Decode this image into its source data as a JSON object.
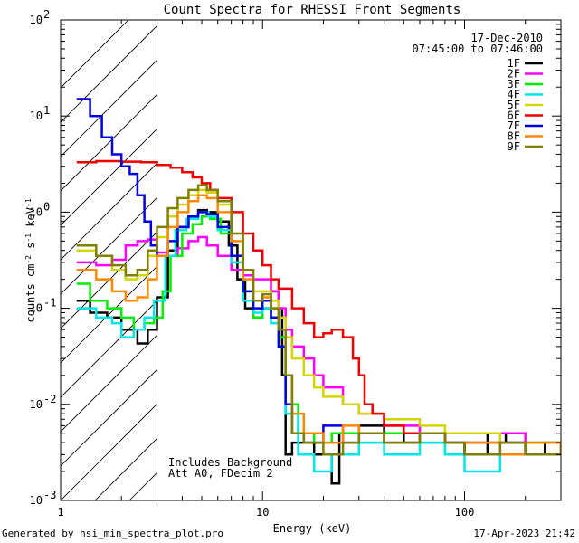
{
  "chart_data": {
    "type": "line",
    "title": "Count Spectra for RHESSI Front Segments",
    "xlabel": "Energy (keV)",
    "ylabel_parts": [
      "counts cm",
      "-2",
      " s",
      "-1",
      " keV",
      "-1"
    ],
    "xscale": "log",
    "yscale": "log",
    "xlim": [
      1,
      300
    ],
    "ylim": [
      0.001,
      100
    ],
    "x_ticks": [
      {
        "v": 1,
        "label": "1"
      },
      {
        "v": 10,
        "label": "10"
      },
      {
        "v": 100,
        "label": "100"
      }
    ],
    "y_ticks": [
      {
        "v": 0.001,
        "base": "10",
        "exp": "-3"
      },
      {
        "v": 0.01,
        "base": "10",
        "exp": "-2"
      },
      {
        "v": 0.1,
        "base": "10",
        "exp": "-1"
      },
      {
        "v": 1,
        "base": "10",
        "exp": "0"
      },
      {
        "v": 10,
        "base": "10",
        "exp": "1"
      },
      {
        "v": 100,
        "base": "10",
        "exp": "2"
      }
    ],
    "excluded_region": [
      1,
      3
    ],
    "date": "17-Dec-2010",
    "time_range": "07:45:00 to 07:46:00",
    "annotations": [
      "Includes Background",
      "Att A0, FDecim 2"
    ],
    "series": [
      {
        "name": "1F",
        "color": "#000000",
        "points": [
          [
            1.2,
            0.12
          ],
          [
            1.4,
            0.09
          ],
          [
            1.7,
            0.08
          ],
          [
            2.0,
            0.06
          ],
          [
            2.4,
            0.043
          ],
          [
            2.7,
            0.06
          ],
          [
            3.0,
            0.13
          ],
          [
            3.4,
            0.4
          ],
          [
            3.8,
            0.7
          ],
          [
            4.3,
            0.9
          ],
          [
            4.8,
            1.05
          ],
          [
            5.3,
            1.0
          ],
          [
            6.0,
            0.8
          ],
          [
            6.8,
            0.45
          ],
          [
            7.5,
            0.2
          ],
          [
            8.2,
            0.1
          ],
          [
            9.0,
            0.08
          ],
          [
            10,
            0.1
          ],
          [
            11,
            0.15
          ],
          [
            12,
            0.1
          ],
          [
            12.5,
            0.02
          ],
          [
            13,
            0.003
          ],
          [
            14,
            0.004
          ],
          [
            16,
            0.004
          ],
          [
            18,
            0.003
          ],
          [
            20,
            0.003
          ],
          [
            22,
            0.0015
          ],
          [
            24,
            0.005
          ],
          [
            30,
            0.006
          ],
          [
            40,
            0.005
          ],
          [
            50,
            0.004
          ],
          [
            60,
            0.005
          ],
          [
            80,
            0.004
          ],
          [
            100,
            0.003
          ],
          [
            130,
            0.005
          ],
          [
            160,
            0.004
          ],
          [
            200,
            0.003
          ],
          [
            250,
            0.004
          ],
          [
            300,
            0.003
          ]
        ]
      },
      {
        "name": "2F",
        "color": "#ff00ff",
        "points": [
          [
            1.2,
            0.3
          ],
          [
            1.5,
            0.28
          ],
          [
            1.8,
            0.32
          ],
          [
            2.1,
            0.45
          ],
          [
            2.4,
            0.5
          ],
          [
            2.7,
            0.52
          ],
          [
            3.0,
            0.38
          ],
          [
            3.4,
            0.35
          ],
          [
            3.8,
            0.42
          ],
          [
            4.3,
            0.5
          ],
          [
            4.8,
            0.55
          ],
          [
            5.3,
            0.45
          ],
          [
            6.0,
            0.35
          ],
          [
            7.0,
            0.25
          ],
          [
            8.0,
            0.22
          ],
          [
            9.0,
            0.2
          ],
          [
            10,
            0.2
          ],
          [
            11,
            0.15
          ],
          [
            12,
            0.1
          ],
          [
            13,
            0.06
          ],
          [
            14,
            0.04
          ],
          [
            16,
            0.03
          ],
          [
            18,
            0.02
          ],
          [
            20,
            0.015
          ],
          [
            25,
            0.01
          ],
          [
            30,
            0.008
          ],
          [
            40,
            0.006
          ],
          [
            60,
            0.005
          ],
          [
            80,
            0.004
          ],
          [
            100,
            0.004
          ],
          [
            150,
            0.005
          ],
          [
            200,
            0.004
          ],
          [
            300,
            0.003
          ]
        ]
      },
      {
        "name": "3F",
        "color": "#00ee00",
        "points": [
          [
            1.2,
            0.18
          ],
          [
            1.4,
            0.12
          ],
          [
            1.7,
            0.1
          ],
          [
            2.0,
            0.08
          ],
          [
            2.3,
            0.06
          ],
          [
            2.6,
            0.07
          ],
          [
            2.9,
            0.08
          ],
          [
            3.2,
            0.15
          ],
          [
            3.5,
            0.35
          ],
          [
            4.0,
            0.6
          ],
          [
            4.5,
            0.75
          ],
          [
            5.0,
            0.9
          ],
          [
            5.5,
            0.85
          ],
          [
            6.2,
            0.6
          ],
          [
            7.0,
            0.3
          ],
          [
            8.0,
            0.15
          ],
          [
            9.0,
            0.08
          ],
          [
            10,
            0.1
          ],
          [
            11,
            0.08
          ],
          [
            12,
            0.05
          ],
          [
            13,
            0.01
          ],
          [
            15,
            0.005
          ],
          [
            18,
            0.004
          ],
          [
            22,
            0.005
          ],
          [
            30,
            0.004
          ],
          [
            40,
            0.005
          ],
          [
            60,
            0.004
          ],
          [
            80,
            0.003
          ],
          [
            100,
            0.004
          ],
          [
            150,
            0.003
          ],
          [
            200,
            0.004
          ],
          [
            300,
            0.003
          ]
        ]
      },
      {
        "name": "4F",
        "color": "#00e5e5",
        "points": [
          [
            1.2,
            0.1
          ],
          [
            1.5,
            0.08
          ],
          [
            1.8,
            0.07
          ],
          [
            2.0,
            0.05
          ],
          [
            2.3,
            0.06
          ],
          [
            2.6,
            0.08
          ],
          [
            2.9,
            0.12
          ],
          [
            3.3,
            0.35
          ],
          [
            3.7,
            0.65
          ],
          [
            4.2,
            0.85
          ],
          [
            4.8,
            1.0
          ],
          [
            5.4,
            0.9
          ],
          [
            6.0,
            0.65
          ],
          [
            7.0,
            0.3
          ],
          [
            8.0,
            0.12
          ],
          [
            9.0,
            0.09
          ],
          [
            10,
            0.1
          ],
          [
            11,
            0.07
          ],
          [
            12,
            0.04
          ],
          [
            13,
            0.008
          ],
          [
            15,
            0.003
          ],
          [
            18,
            0.002
          ],
          [
            22,
            0.003
          ],
          [
            30,
            0.004
          ],
          [
            40,
            0.003
          ],
          [
            60,
            0.004
          ],
          [
            80,
            0.003
          ],
          [
            100,
            0.002
          ],
          [
            150,
            0.003
          ],
          [
            200,
            0.004
          ],
          [
            300,
            0.003
          ]
        ]
      },
      {
        "name": "5F",
        "color": "#d4d400",
        "points": [
          [
            1.2,
            0.4
          ],
          [
            1.5,
            0.35
          ],
          [
            1.8,
            0.25
          ],
          [
            2.1,
            0.2
          ],
          [
            2.4,
            0.22
          ],
          [
            2.7,
            0.35
          ],
          [
            3.0,
            0.55
          ],
          [
            3.4,
            0.9
          ],
          [
            3.8,
            1.2
          ],
          [
            4.3,
            1.5
          ],
          [
            4.8,
            1.7
          ],
          [
            5.3,
            1.6
          ],
          [
            6.0,
            1.2
          ],
          [
            7.0,
            0.6
          ],
          [
            8.0,
            0.25
          ],
          [
            9.0,
            0.15
          ],
          [
            10,
            0.15
          ],
          [
            11,
            0.12
          ],
          [
            12,
            0.08
          ],
          [
            13,
            0.05
          ],
          [
            14,
            0.03
          ],
          [
            16,
            0.02
          ],
          [
            18,
            0.015
          ],
          [
            20,
            0.012
          ],
          [
            25,
            0.01
          ],
          [
            30,
            0.008
          ],
          [
            40,
            0.007
          ],
          [
            60,
            0.006
          ],
          [
            80,
            0.005
          ],
          [
            100,
            0.005
          ],
          [
            150,
            0.004
          ],
          [
            200,
            0.004
          ],
          [
            300,
            0.003
          ]
        ]
      },
      {
        "name": "6F",
        "color": "#ee0000",
        "points": [
          [
            1.2,
            3.3
          ],
          [
            1.5,
            3.4
          ],
          [
            2.0,
            3.35
          ],
          [
            2.5,
            3.3
          ],
          [
            3.0,
            3.1
          ],
          [
            3.5,
            2.9
          ],
          [
            4.0,
            2.6
          ],
          [
            4.5,
            2.3
          ],
          [
            5.0,
            2.0
          ],
          [
            5.5,
            1.7
          ],
          [
            6.0,
            1.4
          ],
          [
            7.0,
            1.0
          ],
          [
            8.0,
            0.6
          ],
          [
            9.0,
            0.4
          ],
          [
            10,
            0.28
          ],
          [
            11,
            0.2
          ],
          [
            12,
            0.16
          ],
          [
            14,
            0.1
          ],
          [
            16,
            0.07
          ],
          [
            18,
            0.05
          ],
          [
            20,
            0.055
          ],
          [
            22,
            0.06
          ],
          [
            25,
            0.05
          ],
          [
            28,
            0.03
          ],
          [
            30,
            0.02
          ],
          [
            32,
            0.01
          ],
          [
            35,
            0.008
          ],
          [
            40,
            0.006
          ],
          [
            50,
            0.005
          ],
          [
            60,
            0.005
          ],
          [
            80,
            0.004
          ],
          [
            100,
            0.004
          ],
          [
            150,
            0.004
          ],
          [
            200,
            0.003
          ],
          [
            300,
            0.003
          ]
        ]
      },
      {
        "name": "7F",
        "color": "#0000dd",
        "points": [
          [
            1.2,
            15
          ],
          [
            1.4,
            10
          ],
          [
            1.6,
            6
          ],
          [
            1.8,
            4
          ],
          [
            2.0,
            3
          ],
          [
            2.2,
            2.5
          ],
          [
            2.4,
            1.5
          ],
          [
            2.6,
            0.8
          ],
          [
            2.8,
            0.45
          ],
          [
            3.0,
            0.35
          ],
          [
            3.4,
            0.5
          ],
          [
            3.8,
            0.7
          ],
          [
            4.3,
            0.9
          ],
          [
            4.8,
            1.0
          ],
          [
            5.3,
            0.95
          ],
          [
            6.0,
            0.7
          ],
          [
            7.0,
            0.35
          ],
          [
            8.0,
            0.15
          ],
          [
            9.0,
            0.1
          ],
          [
            10,
            0.12
          ],
          [
            11,
            0.08
          ],
          [
            12,
            0.04
          ],
          [
            13,
            0.01
          ],
          [
            14,
            0.005
          ],
          [
            16,
            0.004
          ],
          [
            20,
            0.006
          ],
          [
            25,
            0.004
          ],
          [
            30,
            0.005
          ],
          [
            40,
            0.004
          ],
          [
            60,
            0.005
          ],
          [
            80,
            0.004
          ],
          [
            100,
            0.003
          ],
          [
            150,
            0.004
          ],
          [
            200,
            0.003
          ],
          [
            300,
            0.003
          ]
        ]
      },
      {
        "name": "8F",
        "color": "#ff8800",
        "points": [
          [
            1.2,
            0.25
          ],
          [
            1.5,
            0.2
          ],
          [
            1.8,
            0.15
          ],
          [
            2.1,
            0.12
          ],
          [
            2.4,
            0.13
          ],
          [
            2.7,
            0.2
          ],
          [
            3.0,
            0.35
          ],
          [
            3.4,
            0.7
          ],
          [
            3.8,
            1.0
          ],
          [
            4.3,
            1.3
          ],
          [
            4.8,
            1.5
          ],
          [
            5.3,
            1.4
          ],
          [
            6.0,
            1.0
          ],
          [
            7.0,
            0.5
          ],
          [
            8.0,
            0.2
          ],
          [
            9.0,
            0.12
          ],
          [
            10,
            0.13
          ],
          [
            11,
            0.1
          ],
          [
            12,
            0.06
          ],
          [
            13,
            0.02
          ],
          [
            14,
            0.008
          ],
          [
            16,
            0.005
          ],
          [
            20,
            0.004
          ],
          [
            25,
            0.006
          ],
          [
            30,
            0.005
          ],
          [
            40,
            0.004
          ],
          [
            60,
            0.005
          ],
          [
            80,
            0.004
          ],
          [
            100,
            0.004
          ],
          [
            150,
            0.003
          ],
          [
            200,
            0.004
          ],
          [
            300,
            0.003
          ]
        ]
      },
      {
        "name": "9F",
        "color": "#808000",
        "points": [
          [
            1.2,
            0.45
          ],
          [
            1.5,
            0.35
          ],
          [
            1.8,
            0.28
          ],
          [
            2.1,
            0.22
          ],
          [
            2.4,
            0.25
          ],
          [
            2.7,
            0.4
          ],
          [
            3.0,
            0.7
          ],
          [
            3.4,
            1.1
          ],
          [
            3.8,
            1.4
          ],
          [
            4.3,
            1.7
          ],
          [
            4.8,
            1.9
          ],
          [
            5.3,
            1.7
          ],
          [
            6.0,
            1.3
          ],
          [
            7.0,
            0.6
          ],
          [
            8.0,
            0.25
          ],
          [
            9.0,
            0.12
          ],
          [
            10,
            0.14
          ],
          [
            11,
            0.1
          ],
          [
            12,
            0.06
          ],
          [
            13,
            0.02
          ],
          [
            14,
            0.005
          ],
          [
            16,
            0.004
          ],
          [
            20,
            0.003
          ],
          [
            25,
            0.004
          ],
          [
            30,
            0.005
          ],
          [
            40,
            0.004
          ],
          [
            60,
            0.005
          ],
          [
            80,
            0.004
          ],
          [
            100,
            0.003
          ],
          [
            150,
            0.004
          ],
          [
            200,
            0.003
          ],
          [
            300,
            0.003
          ]
        ]
      }
    ]
  },
  "footer": {
    "generated_by": "Generated by hsi_min_spectra_plot.pro",
    "timestamp": "17-Apr-2023 21:42"
  }
}
